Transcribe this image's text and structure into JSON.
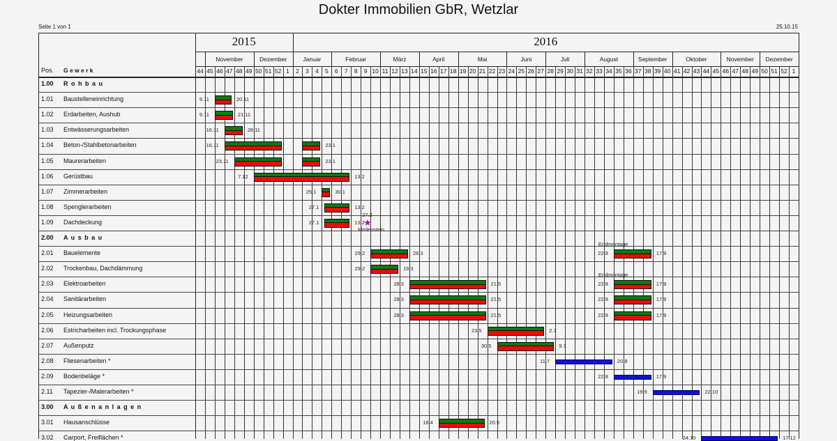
{
  "header": {
    "title": "Dokter Immobilien GbR, Wetzlar",
    "page": "Seite 1 von 1",
    "date": "25.10.15"
  },
  "chart_data": {
    "type": "gantt",
    "column_headers": {
      "pos": "Pos.",
      "trade": "G e w e r k"
    },
    "colors": {
      "planned": "#0b7a10",
      "actual": "#ee0a0a",
      "optional": "#1010d8",
      "milestone": "#b000b0"
    },
    "axis_start": "2015-10-26",
    "years": [
      {
        "label": "2015",
        "weeks": 10
      },
      {
        "label": "2016",
        "weeks": 52
      }
    ],
    "months": [
      {
        "label": "",
        "weeks": 1
      },
      {
        "label": "November",
        "weeks": 5
      },
      {
        "label": "Dezember",
        "weeks": 4
      },
      {
        "label": "Januar",
        "weeks": 4
      },
      {
        "label": "Februar",
        "weeks": 5
      },
      {
        "label": "März",
        "weeks": 4
      },
      {
        "label": "April",
        "weeks": 4
      },
      {
        "label": "Mai",
        "weeks": 5
      },
      {
        "label": "Juni",
        "weeks": 4
      },
      {
        "label": "Juli",
        "weeks": 4
      },
      {
        "label": "August",
        "weeks": 5
      },
      {
        "label": "September",
        "weeks": 4
      },
      {
        "label": "Oktober",
        "weeks": 5
      },
      {
        "label": "November",
        "weeks": 4
      },
      {
        "label": "Dezember",
        "weeks": 4
      }
    ],
    "weeks": [
      "44",
      "45",
      "46",
      "47",
      "48",
      "49",
      "50",
      "51",
      "52",
      "1",
      "2",
      "3",
      "4",
      "5",
      "6",
      "7",
      "8",
      "9",
      "10",
      "11",
      "12",
      "13",
      "14",
      "15",
      "16",
      "17",
      "18",
      "19",
      "20",
      "21",
      "22",
      "23",
      "24",
      "25",
      "26",
      "27",
      "28",
      "29",
      "30",
      "31",
      "32",
      "33",
      "34",
      "35",
      "36",
      "37",
      "38",
      "39",
      "40",
      "41",
      "42",
      "43",
      "44",
      "45",
      "46",
      "47",
      "48",
      "49",
      "50",
      "51",
      "52",
      "1"
    ],
    "rows": [
      {
        "pos": "1.00",
        "name": "R o h b a u",
        "group": true,
        "bars": []
      },
      {
        "pos": "1.01",
        "name": "Baustelleneinrichtung",
        "bars": [
          {
            "start": "2015-11-09",
            "end": "2015-11-20",
            "start_label": "9.11",
            "end_label": "20.11",
            "kind": "planned"
          }
        ]
      },
      {
        "pos": "1.02",
        "name": "Erdarbeiten, Aushub",
        "bars": [
          {
            "start": "2015-11-09",
            "end": "2015-11-21",
            "start_label": "9.11",
            "end_label": "21.11",
            "kind": "planned"
          }
        ]
      },
      {
        "pos": "1.03",
        "name": "Entwässerungsarbeiten",
        "bars": [
          {
            "start": "2015-11-16",
            "end": "2015-11-28",
            "start_label": "16.11",
            "end_label": "28.11",
            "kind": "planned"
          }
        ]
      },
      {
        "pos": "1.04",
        "name": "Beton-/Stahlbetonarbeiten",
        "bars": [
          {
            "start": "2015-11-16",
            "end": "2015-12-26",
            "start_label": "16.11",
            "end_label": "",
            "kind": "planned"
          },
          {
            "start": "2016-01-11",
            "end": "2016-01-23",
            "start_label": "",
            "end_label": "23.1",
            "kind": "planned"
          }
        ]
      },
      {
        "pos": "1.05",
        "name": "Maurerarbeiten",
        "bars": [
          {
            "start": "2015-11-23",
            "end": "2015-12-26",
            "start_label": "23.11",
            "end_label": "",
            "kind": "planned"
          },
          {
            "start": "2016-01-11",
            "end": "2016-01-23",
            "start_label": "",
            "end_label": "23.1",
            "kind": "planned"
          }
        ]
      },
      {
        "pos": "1.06",
        "name": "Gerüstbau",
        "bars": [
          {
            "start": "2015-12-07",
            "end": "2016-02-13",
            "start_label": "7.12",
            "end_label": "13.2",
            "kind": "planned"
          }
        ]
      },
      {
        "pos": "1.07",
        "name": "Zimmerarbeiten",
        "bars": [
          {
            "start": "2016-01-25",
            "end": "2016-01-30",
            "start_label": "25.1",
            "end_label": "30.1",
            "kind": "planned"
          }
        ]
      },
      {
        "pos": "1.08",
        "name": "Spenglerarbeiten",
        "bars": [
          {
            "start": "2016-01-27",
            "end": "2016-02-13",
            "start_label": "27.1",
            "end_label": "13.2",
            "kind": "planned"
          }
        ]
      },
      {
        "pos": "1.09",
        "name": "Dachdeckung",
        "bars": [
          {
            "start": "2016-01-27",
            "end": "2016-02-13",
            "start_label": "27.1",
            "end_label": "13.2",
            "kind": "planned"
          }
        ],
        "milestone": {
          "date": "2016-02-27",
          "label": "27.2",
          "caption": "Meilenstein"
        }
      },
      {
        "pos": "2.00",
        "name": "A u s b a u",
        "group": true,
        "bars": []
      },
      {
        "pos": "2.01",
        "name": "Bauelemente",
        "bars": [
          {
            "start": "2016-02-29",
            "end": "2016-03-26",
            "start_label": "29.2",
            "end_label": "26.3",
            "kind": "planned"
          },
          {
            "start": "2016-08-22",
            "end": "2016-09-17",
            "start_label": "22.8",
            "end_label": "17.9",
            "kind": "planned",
            "note": "Endmontage"
          }
        ]
      },
      {
        "pos": "2.02",
        "name": "Trockenbau, Dachdämmung",
        "bars": [
          {
            "start": "2016-02-29",
            "end": "2016-03-19",
            "start_label": "29.2",
            "end_label": "19.3",
            "kind": "planned"
          }
        ]
      },
      {
        "pos": "2.03",
        "name": "Elektroarbeiten",
        "bars": [
          {
            "start": "2016-03-28",
            "end": "2016-05-21",
            "start_label": "28.3",
            "end_label": "21.5",
            "kind": "planned"
          },
          {
            "start": "2016-08-22",
            "end": "2016-09-17",
            "start_label": "22.8",
            "end_label": "17.9",
            "kind": "planned",
            "note": "Endmontage"
          }
        ]
      },
      {
        "pos": "2.04",
        "name": "Sanitärarbeiten",
        "bars": [
          {
            "start": "2016-03-28",
            "end": "2016-05-21",
            "start_label": "28.3",
            "end_label": "21.5",
            "kind": "planned"
          },
          {
            "start": "2016-08-22",
            "end": "2016-09-17",
            "start_label": "22.8",
            "end_label": "17.9",
            "kind": "planned"
          }
        ]
      },
      {
        "pos": "2.05",
        "name": "Heizungsarbeiten",
        "bars": [
          {
            "start": "2016-03-28",
            "end": "2016-05-21",
            "start_label": "28.3",
            "end_label": "21.5",
            "kind": "planned"
          },
          {
            "start": "2016-08-22",
            "end": "2016-09-17",
            "start_label": "22.8",
            "end_label": "17.9",
            "kind": "planned"
          }
        ]
      },
      {
        "pos": "2.06",
        "name": "Estricharbeiten incl. Trockungsphase",
        "bars": [
          {
            "start": "2016-05-23",
            "end": "2016-07-02",
            "start_label": "23.5",
            "end_label": "2.7",
            "kind": "planned"
          }
        ]
      },
      {
        "pos": "2.07",
        "name": "Außenputz",
        "bars": [
          {
            "start": "2016-05-30",
            "end": "2016-07-09",
            "start_label": "30.5",
            "end_label": "9.7",
            "kind": "planned"
          }
        ]
      },
      {
        "pos": "2.08",
        "name": "Fliesenarbeiten *",
        "bars": [
          {
            "start": "2016-07-11",
            "end": "2016-08-20",
            "start_label": "11.7",
            "end_label": "20.8",
            "kind": "optional"
          }
        ]
      },
      {
        "pos": "2.09",
        "name": "Bodenbeläge *",
        "bars": [
          {
            "start": "2016-08-22",
            "end": "2016-09-17",
            "start_label": "22.8",
            "end_label": "17.9",
            "kind": "optional"
          }
        ]
      },
      {
        "pos": "2.11",
        "name": "Tapezier-/Malerarbeiten *",
        "bars": [
          {
            "start": "2016-09-19",
            "end": "2016-10-22",
            "start_label": "19.9",
            "end_label": "22.10",
            "kind": "optional"
          }
        ]
      },
      {
        "pos": "3.00",
        "name": "A u ß e n a n l a g e n",
        "group": true,
        "bars": []
      },
      {
        "pos": "3.01",
        "name": "Hausanschlüsse",
        "bars": [
          {
            "start": "2016-04-18",
            "end": "2016-05-20",
            "start_label": "18.4",
            "end_label": "20.5",
            "kind": "planned"
          }
        ]
      },
      {
        "pos": "3.02",
        "name": "Carport, Freiflächen *",
        "bars": [
          {
            "start": "2016-10-24",
            "end": "2016-12-17",
            "start_label": "24.10",
            "end_label": "17.12",
            "kind": "optional"
          }
        ]
      }
    ]
  }
}
